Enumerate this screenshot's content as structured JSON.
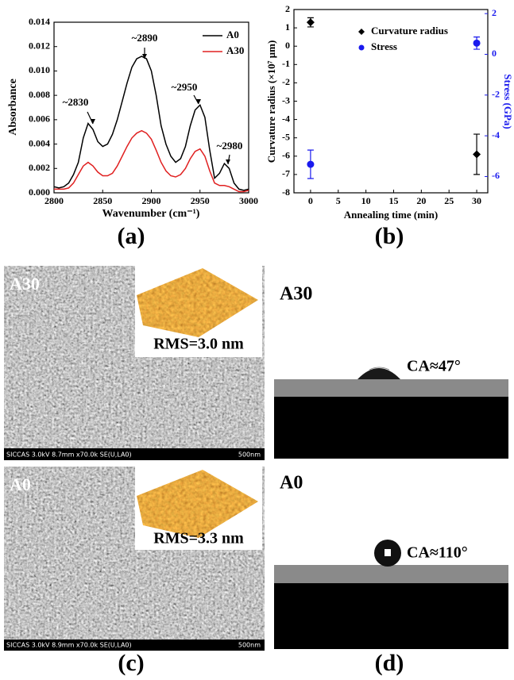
{
  "chart_data": [
    {
      "type": "line",
      "x": [
        2800,
        2805,
        2810,
        2815,
        2820,
        2825,
        2830,
        2835,
        2840,
        2845,
        2850,
        2855,
        2860,
        2865,
        2870,
        2875,
        2880,
        2885,
        2890,
        2895,
        2900,
        2905,
        2910,
        2915,
        2920,
        2925,
        2930,
        2935,
        2940,
        2945,
        2950,
        2955,
        2960,
        2965,
        2970,
        2975,
        2980,
        2985,
        2990,
        2995,
        3000
      ],
      "series": [
        {
          "name": "A0",
          "color": "#000000",
          "values": [
            0.0005,
            0.0004,
            0.0005,
            0.0008,
            0.0015,
            0.0025,
            0.0045,
            0.0057,
            0.0052,
            0.0042,
            0.0038,
            0.004,
            0.0048,
            0.006,
            0.0075,
            0.009,
            0.0103,
            0.011,
            0.0112,
            0.011,
            0.01,
            0.008,
            0.0055,
            0.004,
            0.003,
            0.0025,
            0.0028,
            0.0038,
            0.0055,
            0.0068,
            0.0072,
            0.0062,
            0.0035,
            0.0012,
            0.0016,
            0.0024,
            0.002,
            0.0008,
            0.0003,
            0.0002,
            0.0003
          ]
        },
        {
          "name": "A30",
          "color": "#e02020",
          "values": [
            0.0003,
            0.0003,
            0.0003,
            0.0004,
            0.0008,
            0.0015,
            0.0022,
            0.0025,
            0.0022,
            0.0017,
            0.0014,
            0.0014,
            0.0016,
            0.0022,
            0.003,
            0.0038,
            0.0045,
            0.0049,
            0.0051,
            0.0049,
            0.0044,
            0.0035,
            0.0025,
            0.0018,
            0.0014,
            0.0013,
            0.0015,
            0.002,
            0.0028,
            0.0034,
            0.0036,
            0.003,
            0.0018,
            0.0008,
            0.0006,
            0.0006,
            0.0005,
            0.0003,
            0.0001,
            0.0001,
            0.0002
          ]
        }
      ],
      "xlim": [
        2800,
        3000
      ],
      "xticks": [
        2800,
        2850,
        2900,
        2950,
        3000
      ],
      "ylim": [
        0,
        0.014
      ],
      "yticks": [
        {
          "value": 0,
          "label": "0.000"
        },
        0.002,
        0.004,
        0.006,
        0.008,
        {
          "value": 0.01,
          "label": "0.010"
        },
        0.012,
        0.014
      ],
      "x_label": "Wavenumber (cm⁻¹)",
      "y_label": "Absorbance",
      "annotations": [
        "~2830",
        "~2890",
        "~2950",
        "~2980"
      ],
      "legend": "upper right"
    },
    {
      "type": "scatter",
      "x": [
        0,
        30
      ],
      "series": [
        {
          "name": "Curvature radius",
          "color": "#000000",
          "marker": "diamond",
          "values": [
            1.3,
            -5.9
          ],
          "errors": [
            0.25,
            1.1
          ]
        },
        {
          "name": "Stress",
          "color": "#1a1aee",
          "marker": "circle",
          "axis": "y2",
          "values": [
            -5.4,
            0.55
          ],
          "errors": [
            0.7,
            0.3
          ]
        }
      ],
      "xlim": [
        -3,
        32
      ],
      "xticks": [
        0,
        5,
        10,
        15,
        20,
        25,
        30
      ],
      "ylim": [
        -8,
        2
      ],
      "yticks": [
        -8,
        -7,
        -6,
        -5,
        -4,
        -3,
        -2,
        -1,
        0,
        1,
        2
      ],
      "y2lim": [
        -6.8,
        2.2
      ],
      "y2ticks": [
        -6,
        -4,
        -2,
        0,
        2
      ],
      "x_label": "Annealing time (min)",
      "y_label": "Curvature radius (×10⁷ μm)",
      "y2_label": "Stress (GPa)",
      "legend": "upper center"
    }
  ],
  "panel_labels": [
    "(a)",
    "(b)",
    "(c)",
    "(d)"
  ],
  "sem": [
    {
      "label": "A30",
      "rms": "RMS=3.0 nm",
      "info": "SICCAS 3.0kV 8.7mm x70.0k SE(U,LA0)",
      "scale": "500nm"
    },
    {
      "label": "A0",
      "rms": "RMS=3.3 nm",
      "info": "SICCAS 3.0kV 8.9mm x70.0k SE(U,LA0)",
      "scale": "500nm"
    }
  ],
  "contact_angle": [
    {
      "label": "A30",
      "ca": "CA≈47°"
    },
    {
      "label": "A0",
      "ca": "CA≈110°"
    }
  ]
}
